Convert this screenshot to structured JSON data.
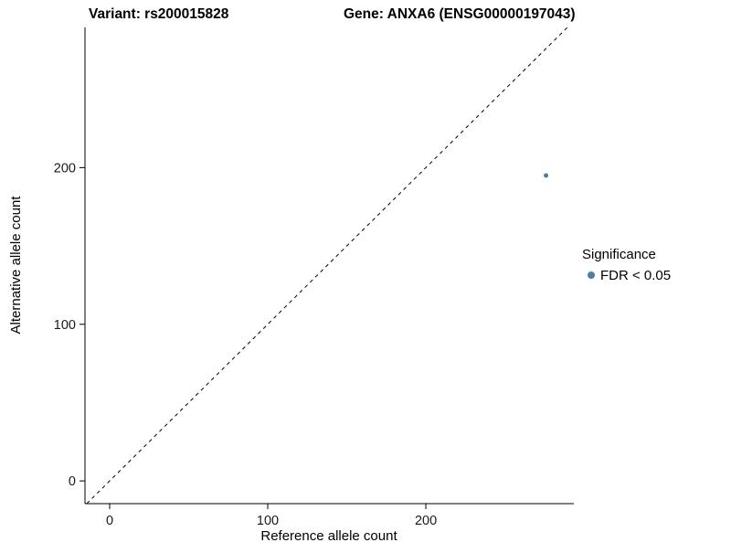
{
  "chart_data": {
    "type": "scatter",
    "title_variant": "Variant: rs200015828",
    "title_gene": "Gene: ANXA6 (ENSG00000197043)",
    "xlabel": "Reference allele count",
    "ylabel": "Alternative allele count",
    "xlim": [
      -15.6,
      293.6
    ],
    "ylim": [
      -14.5,
      289.5
    ],
    "x_ticks": [
      0,
      100,
      200
    ],
    "y_ticks": [
      0,
      100,
      200
    ],
    "grid": false,
    "legend_position": "right",
    "legend_title": "Significance",
    "identity_line": {
      "style": "dashed",
      "color": "#000000",
      "dash": "4,4",
      "width": 1
    },
    "series": [
      {
        "name": "FDR < 0.05",
        "color": "#4D7EA8",
        "point_radius": 2.5,
        "points": [
          {
            "x": 276,
            "y": 195
          }
        ]
      }
    ]
  }
}
